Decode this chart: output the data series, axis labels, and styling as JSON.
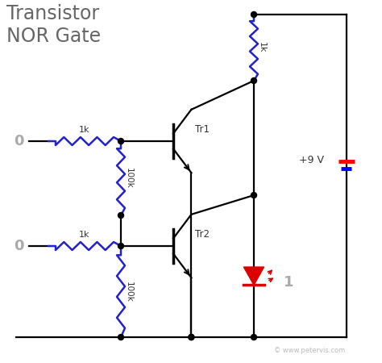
{
  "title": "Transistor\nNOR Gate",
  "title_color": "#666666",
  "bg_color": "#ffffff",
  "wire_color": "#000000",
  "blue": "#2222cc",
  "gray": "#aaaaaa",
  "dark": "#333333",
  "red": "#dd0000",
  "copyright": "© www.petervis.com",
  "vcc_label": "+9 V",
  "tr1_label": "Tr1",
  "tr2_label": "Tr2",
  "res1k": "1k",
  "res100k": "100k",
  "res_top": "1k",
  "in1": "0",
  "in2": "0",
  "out": "1"
}
